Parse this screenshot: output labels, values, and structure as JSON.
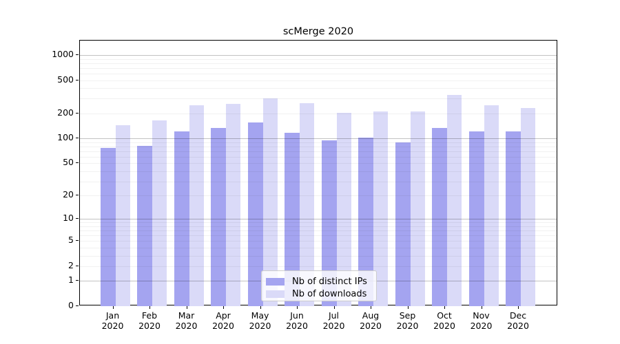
{
  "chart_data": {
    "type": "bar",
    "title": "scMerge 2020",
    "categories": [
      "Jan",
      "Feb",
      "Mar",
      "Apr",
      "May",
      "Jun",
      "Jul",
      "Aug",
      "Sep",
      "Oct",
      "Nov",
      "Dec"
    ],
    "year": "2020",
    "series": [
      {
        "name": "Nb of distinct IPs",
        "color": "#a4a4f0",
        "values": [
          77,
          82,
          122,
          134,
          157,
          116,
          95,
          102,
          90,
          134,
          122,
          122
        ]
      },
      {
        "name": "Nb of downloads",
        "color": "#dadaf8",
        "values": [
          145,
          165,
          250,
          260,
          305,
          267,
          205,
          210,
          212,
          330,
          252,
          230
        ]
      }
    ],
    "xlabel": "",
    "ylabel": "",
    "y_ticks": [
      0,
      1,
      2,
      5,
      10,
      20,
      50,
      100,
      200,
      500,
      1000
    ],
    "y_scale": "log1p",
    "ylim": [
      0,
      1490
    ],
    "grid": true,
    "legend_position": "inside lower-center",
    "colors": {
      "spine": "#000000",
      "grid_major": "#c2c2c2",
      "grid_minor": "#ededed",
      "text": "#000000",
      "legend_border": "#cccccc",
      "background": "#ffffff"
    }
  }
}
